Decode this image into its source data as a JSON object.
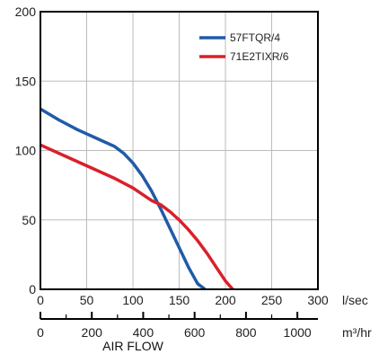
{
  "chart_data": {
    "type": "line",
    "xlabel": "AIR FLOW",
    "x_unit": "l/sec",
    "x2_unit": "m³/hr",
    "xlim": [
      0,
      300
    ],
    "ylim": [
      0,
      200
    ],
    "x_ticks": [
      0,
      50,
      100,
      150,
      200,
      250,
      300
    ],
    "y_ticks": [
      0,
      50,
      100,
      150,
      200
    ],
    "x2_ticks": [
      0,
      200,
      400,
      600,
      800,
      1000
    ],
    "grid": true,
    "legend_position": "top-right",
    "colors": {
      "57FTQR/4": "#1f5ba8",
      "71E2TIXR/6": "#d9202a",
      "grid": "#bbbbbb",
      "axis": "#000000"
    },
    "series": [
      {
        "name": "57FTQR/4",
        "color": "#1f5ba8",
        "x": [
          0,
          20,
          40,
          60,
          80,
          90,
          100,
          110,
          120,
          130,
          140,
          150,
          160,
          170,
          178
        ],
        "y": [
          130,
          122,
          115,
          109,
          103,
          98,
          91,
          82,
          71,
          58,
          44,
          30,
          16,
          4,
          0
        ]
      },
      {
        "name": "71E2TIXR/6",
        "color": "#d9202a",
        "x": [
          0,
          20,
          40,
          60,
          80,
          100,
          120,
          130,
          140,
          150,
          160,
          170,
          180,
          190,
          200,
          208
        ],
        "y": [
          104,
          98,
          92,
          86,
          80,
          73,
          64,
          61,
          56,
          50,
          43,
          35,
          26,
          16,
          6,
          0
        ]
      }
    ]
  }
}
